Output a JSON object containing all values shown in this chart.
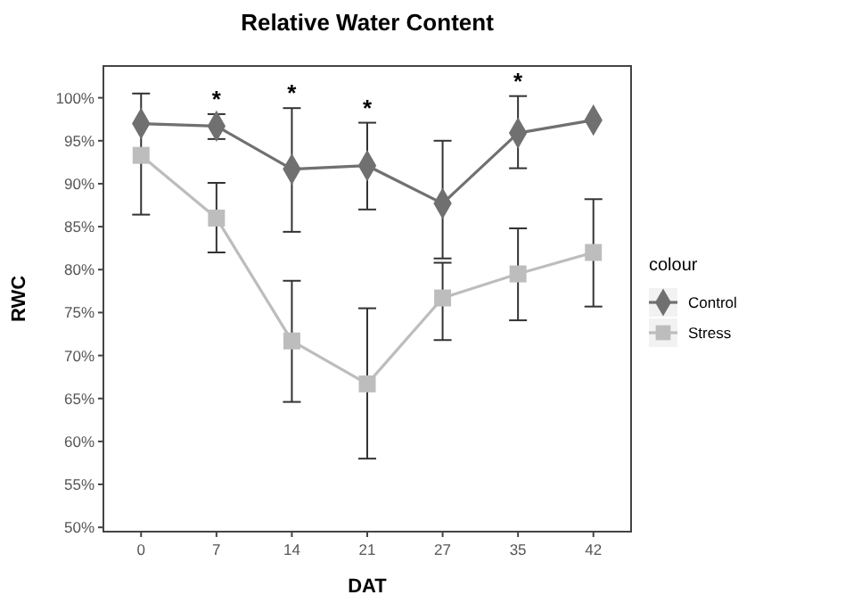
{
  "chart_data": {
    "type": "line",
    "title": "Relative Water Content",
    "xlabel": "DAT",
    "ylabel": "RWC",
    "legend_title": "colour",
    "categories": [
      "0",
      "7",
      "14",
      "21",
      "27",
      "35",
      "42"
    ],
    "series": [
      {
        "name": "Control",
        "color": "#707070",
        "marker": "diamond",
        "values": [
          97,
          96.7,
          91.7,
          92.1,
          87.7,
          95.9,
          97.4
        ],
        "errors": [
          [
            86.4,
            100.5
          ],
          [
            95.2,
            98.1
          ],
          [
            84.4,
            98.8
          ],
          [
            87,
            97.1
          ],
          [
            81.3,
            95
          ],
          [
            91.8,
            100.2
          ],
          null
        ]
      },
      {
        "name": "Stress",
        "color": "#bdbdbd",
        "marker": "square",
        "values": [
          93.3,
          86,
          71.7,
          66.7,
          76.7,
          79.5,
          82
        ],
        "errors": [
          null,
          [
            82,
            90.1
          ],
          [
            64.6,
            78.7
          ],
          [
            58,
            75.5
          ],
          [
            71.8,
            80.8
          ],
          [
            74.1,
            84.8
          ],
          [
            75.7,
            88.2
          ]
        ]
      }
    ],
    "ylim": [
      49.5,
      103.7
    ],
    "yticks": [
      {
        "value": 50,
        "label": "50%"
      },
      {
        "value": 55,
        "label": "55%"
      },
      {
        "value": 60,
        "label": "60%"
      },
      {
        "value": 65,
        "label": "65%"
      },
      {
        "value": 70,
        "label": "70%"
      },
      {
        "value": 75,
        "label": "75%"
      },
      {
        "value": 80,
        "label": "80%"
      },
      {
        "value": 85,
        "label": "85%"
      },
      {
        "value": 90,
        "label": "90%"
      },
      {
        "value": 95,
        "label": "95%"
      },
      {
        "value": 100,
        "label": "100%"
      }
    ],
    "annotations": [
      {
        "text": "*",
        "x": "7",
        "y": 98.1
      },
      {
        "text": "*",
        "x": "14",
        "y": 98.8
      },
      {
        "text": "*",
        "x": "21",
        "y": 97.1
      },
      {
        "text": "*",
        "x": "35",
        "y": 100.2
      }
    ],
    "legend": "right",
    "grid": false,
    "line_style": "solid"
  }
}
